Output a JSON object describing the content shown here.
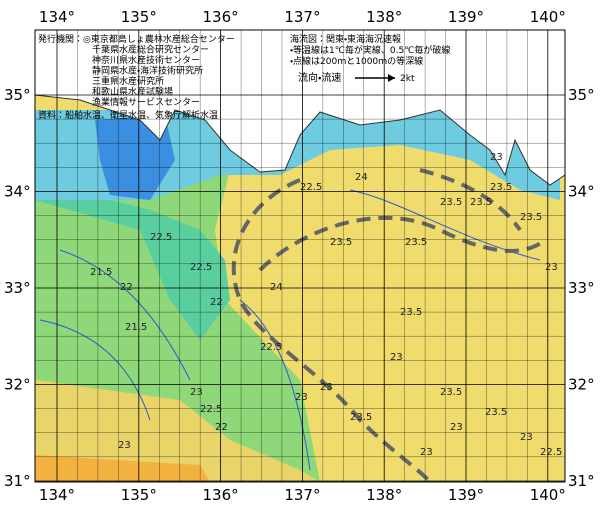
{
  "map": {
    "lon_labels": [
      "134°",
      "135°",
      "136°",
      "137°",
      "138°",
      "139°",
      "140°"
    ],
    "lat_labels": [
      "35°",
      "34°",
      "33°",
      "32°",
      "31°"
    ],
    "publisher_notes": [
      "発行機関：◎東京都島しょ農林水産総合センター",
      "千葉県水産総合研究センター",
      "神奈川県水産技術センター",
      "静岡県水産・海洋技術研究所",
      "三重県水産研究所",
      "和歌山県水産試験場",
      "漁業情報サービスセンター",
      "資料：船舶水温、衛星水温、気象庁解析水温"
    ],
    "legend_notes": [
      "海流図：関東・東海海況速報",
      "・等温線は1℃毎が実線、0.5℃毎が破線",
      "・点線は200ｍと1000ｍの等深線"
    ],
    "current_label": "流向・流速",
    "current_speed": "2kt",
    "isotherm_labels": [
      "22.5",
      "21.5",
      "22",
      "22.5",
      "21.5",
      "22",
      "22.5",
      "23",
      "22",
      "23",
      "22.5",
      "23",
      "23.5",
      "23.5",
      "24",
      "23.5",
      "23",
      "23.5",
      "23",
      "23.5",
      "23.5",
      "23",
      "23",
      "22.5",
      "23.5",
      "24",
      "23.5",
      "23",
      "23",
      "23.5",
      "22.5",
      "23.5",
      "23"
    ]
  }
}
